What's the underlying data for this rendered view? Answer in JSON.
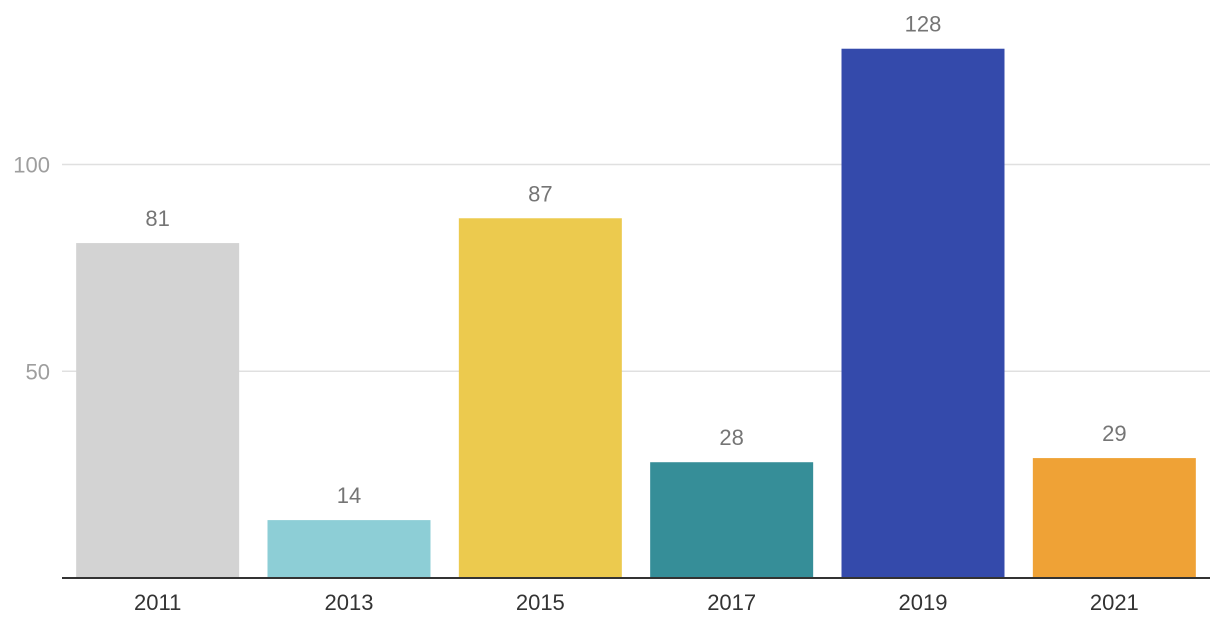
{
  "chart_data": {
    "type": "bar",
    "categories": [
      "2011",
      "2013",
      "2015",
      "2017",
      "2019",
      "2021"
    ],
    "values": [
      81,
      14,
      87,
      28,
      128,
      29
    ],
    "colors": [
      "#d3d3d3",
      "#8dced6",
      "#ecca4e",
      "#368e98",
      "#344aab",
      "#efa236"
    ],
    "title": "",
    "xlabel": "",
    "ylabel": "",
    "ylim": [
      0,
      130
    ],
    "yticks": [
      50,
      100
    ],
    "ytick_labels": [
      "50",
      "100"
    ],
    "grid": true,
    "data_labels": true
  }
}
